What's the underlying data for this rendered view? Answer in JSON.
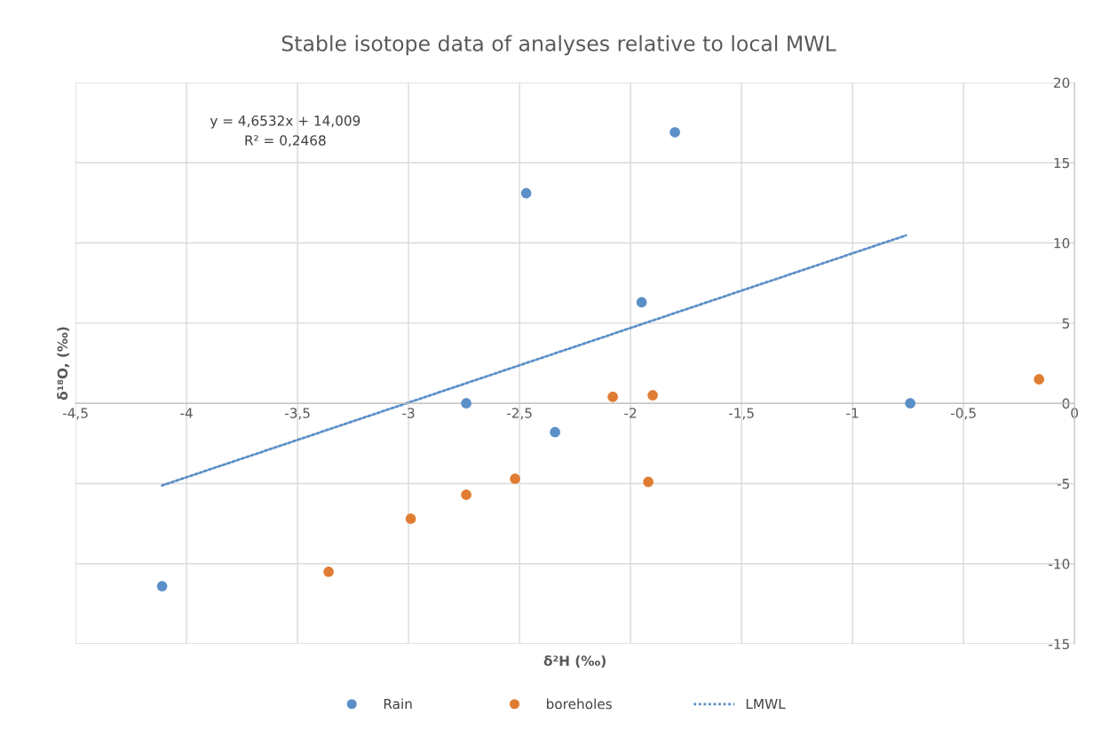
{
  "chart_data": {
    "type": "scatter",
    "title": "Stable isotope data of analyses relative to local MWL",
    "xlabel": "δ²H (‰)",
    "ylabel": "δ¹⁸O, (‰)",
    "annotations": [
      "y = 4,6532x + 14,009",
      "R² = 0,2468"
    ],
    "series": [
      {
        "name": "Rain",
        "color": "#5b8fc7",
        "x": [
          -4.11,
          -2.74,
          -2.47,
          -2.34,
          -1.95,
          -1.8,
          -0.74
        ],
        "values": [
          -11.4,
          0,
          13.1,
          -1.8,
          6.3,
          16.9,
          0
        ]
      },
      {
        "name": "boreholes",
        "color": "#e07c32",
        "x": [
          -3.36,
          -2.99,
          -2.74,
          -2.52,
          -2.08,
          -1.9,
          -1.92,
          -0.16
        ],
        "values": [
          -10.5,
          -7.2,
          -5.7,
          -4.7,
          0.4,
          0.5,
          -4.9,
          1.5
        ]
      },
      {
        "name": "LMWL",
        "type": "line",
        "line_style": "dotted",
        "marker": "none",
        "color": "#5b8fc7",
        "x": [
          -4.11,
          -0.76
        ],
        "values": [
          -5.12,
          10.47
        ]
      }
    ],
    "xlim": [
      -4.5,
      0
    ],
    "ylim": [
      -15,
      20
    ],
    "xticks": [
      {
        "value": -4.5,
        "label": "-4,5"
      },
      -4,
      {
        "value": -3.5,
        "label": "-3,5"
      },
      -3,
      {
        "value": -2.5,
        "label": "-2,5"
      },
      -2,
      {
        "value": -1.5,
        "label": "-1,5"
      },
      -1,
      {
        "value": -0.5,
        "label": "-0,5"
      },
      0
    ],
    "yticks": [
      -15,
      -10,
      -5,
      0,
      5,
      10,
      15,
      20
    ],
    "grid": true,
    "legend": "bottom",
    "marker": "circle"
  }
}
